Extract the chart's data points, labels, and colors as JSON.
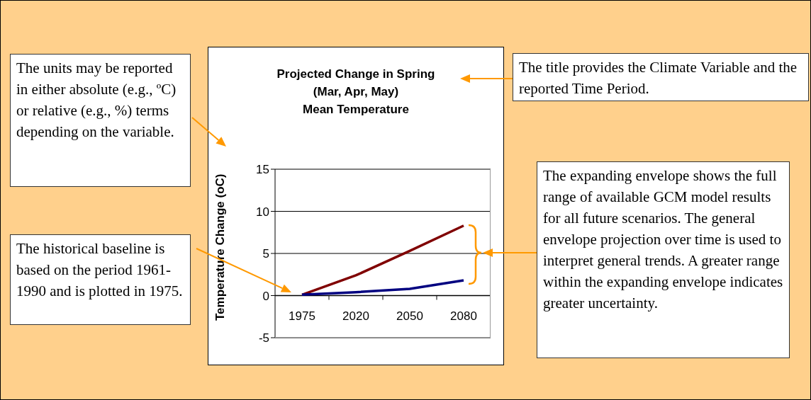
{
  "chart_data": {
    "type": "line",
    "title": "Projected Change in Spring\n(Mar, Apr, May)\nMean Temperature",
    "ylabel": "Temperature Change (oC)",
    "categories": [
      "1975",
      "2020",
      "2050",
      "2080"
    ],
    "series": [
      {
        "color": "#800000",
        "values": [
          0.1,
          2.4,
          5.3,
          8.3
        ]
      },
      {
        "color": "#000080",
        "values": [
          0.1,
          0.4,
          0.8,
          1.8
        ]
      }
    ],
    "ylim": [
      -5,
      15
    ],
    "yticks": [
      -5,
      0,
      5,
      10,
      15
    ],
    "grid": "y",
    "legend": false,
    "marker": "none",
    "line_style": "solid",
    "annotations": [
      "The units may be reported in either absolute (e.g., ºC) or relative (e.g., %) terms depending on the variable.",
      "The title provides the Climate Variable and the reported Time Period.",
      "The historical baseline is based on the period 1961-1990 and is plotted in 1975.",
      "The expanding envelope shows the full range of available GCM model results for all future scenarios. The general envelope projection over time is used to interpret general trends. A greater range within the expanding envelope indicates greater uncertainty."
    ]
  }
}
